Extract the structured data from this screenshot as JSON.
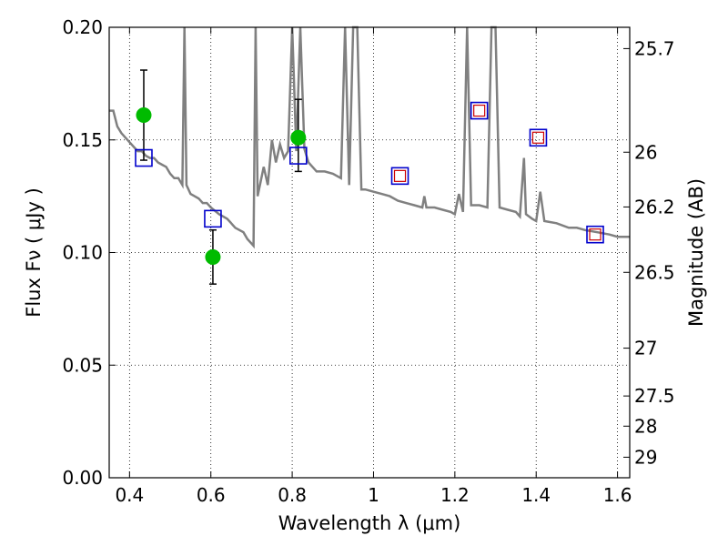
{
  "chart_data": {
    "type": "scatter",
    "title": "",
    "xlabel": "Wavelength  λ (μm)",
    "ylabel": "Flux  Fν  ( μJy )",
    "y2label": "Magnitude (AB)",
    "xlim": [
      0.35,
      1.63
    ],
    "ylim": [
      0.0,
      0.2
    ],
    "grid": true,
    "x_ticks": [
      {
        "value": 0.4,
        "label": "0.4"
      },
      {
        "value": 0.6,
        "label": "0.6"
      },
      {
        "value": 0.8,
        "label": "0.8"
      },
      {
        "value": 1.0,
        "label": "1"
      },
      {
        "value": 1.2,
        "label": "1.2"
      },
      {
        "value": 1.4,
        "label": "1.4"
      },
      {
        "value": 1.6,
        "label": "1.6"
      }
    ],
    "y_ticks": [
      {
        "value": 0.0,
        "label": "0.00"
      },
      {
        "value": 0.05,
        "label": "0.05"
      },
      {
        "value": 0.1,
        "label": "0.10"
      },
      {
        "value": 0.15,
        "label": "0.15"
      },
      {
        "value": 0.2,
        "label": "0.20"
      }
    ],
    "y2_ticks": [
      {
        "mag": 25.7,
        "label": "25.7"
      },
      {
        "mag": 26,
        "label": "26"
      },
      {
        "mag": 26.2,
        "label": "26.2"
      },
      {
        "mag": 26.5,
        "label": "26.5"
      },
      {
        "mag": 27,
        "label": "27"
      },
      {
        "mag": 27.5,
        "label": "27.5"
      },
      {
        "mag": 28,
        "label": "28"
      },
      {
        "mag": 29,
        "label": "29"
      }
    ],
    "colors": {
      "model": "#808080",
      "observed": "#00bb00",
      "synthetic": "#0000cc",
      "synthetic_inner": "#cc0000",
      "errorbar": "#000000"
    },
    "series": [
      {
        "kind": "line",
        "points": [
          [
            0.35,
            0.163
          ],
          [
            0.36,
            0.163
          ],
          [
            0.37,
            0.156
          ],
          [
            0.38,
            0.153
          ],
          [
            0.39,
            0.151
          ],
          [
            0.4,
            0.149
          ],
          [
            0.41,
            0.147
          ],
          [
            0.42,
            0.145
          ],
          [
            0.43,
            0.145
          ],
          [
            0.44,
            0.143
          ],
          [
            0.45,
            0.142
          ],
          [
            0.46,
            0.142
          ],
          [
            0.47,
            0.14
          ],
          [
            0.48,
            0.139
          ],
          [
            0.49,
            0.138
          ],
          [
            0.5,
            0.135
          ],
          [
            0.51,
            0.133
          ],
          [
            0.52,
            0.133
          ],
          [
            0.53,
            0.13
          ],
          [
            0.535,
            0.2
          ],
          [
            0.54,
            0.13
          ],
          [
            0.55,
            0.126
          ],
          [
            0.56,
            0.125
          ],
          [
            0.57,
            0.124
          ],
          [
            0.58,
            0.122
          ],
          [
            0.59,
            0.122
          ],
          [
            0.6,
            0.12
          ],
          [
            0.62,
            0.117
          ],
          [
            0.64,
            0.115
          ],
          [
            0.65,
            0.113
          ],
          [
            0.66,
            0.111
          ],
          [
            0.68,
            0.109
          ],
          [
            0.69,
            0.106
          ],
          [
            0.7,
            0.104
          ],
          [
            0.705,
            0.103
          ],
          [
            0.71,
            0.2
          ],
          [
            0.715,
            0.125
          ],
          [
            0.73,
            0.138
          ],
          [
            0.74,
            0.13
          ],
          [
            0.75,
            0.15
          ],
          [
            0.76,
            0.14
          ],
          [
            0.77,
            0.148
          ],
          [
            0.78,
            0.142
          ],
          [
            0.79,
            0.145
          ],
          [
            0.8,
            0.2
          ],
          [
            0.81,
            0.145
          ],
          [
            0.82,
            0.2
          ],
          [
            0.83,
            0.146
          ],
          [
            0.84,
            0.14
          ],
          [
            0.86,
            0.136
          ],
          [
            0.88,
            0.136
          ],
          [
            0.9,
            0.135
          ],
          [
            0.92,
            0.133
          ],
          [
            0.93,
            0.2
          ],
          [
            0.94,
            0.13
          ],
          [
            0.95,
            0.2
          ],
          [
            0.96,
            0.2
          ],
          [
            0.97,
            0.128
          ],
          [
            0.98,
            0.128
          ],
          [
            1.0,
            0.127
          ],
          [
            1.02,
            0.126
          ],
          [
            1.04,
            0.125
          ],
          [
            1.06,
            0.123
          ],
          [
            1.08,
            0.122
          ],
          [
            1.1,
            0.121
          ],
          [
            1.12,
            0.12
          ],
          [
            1.125,
            0.125
          ],
          [
            1.13,
            0.12
          ],
          [
            1.15,
            0.12
          ],
          [
            1.17,
            0.119
          ],
          [
            1.19,
            0.118
          ],
          [
            1.2,
            0.117
          ],
          [
            1.21,
            0.126
          ],
          [
            1.22,
            0.118
          ],
          [
            1.23,
            0.2
          ],
          [
            1.24,
            0.121
          ],
          [
            1.26,
            0.121
          ],
          [
            1.28,
            0.12
          ],
          [
            1.29,
            0.2
          ],
          [
            1.3,
            0.2
          ],
          [
            1.31,
            0.12
          ],
          [
            1.33,
            0.119
          ],
          [
            1.35,
            0.118
          ],
          [
            1.36,
            0.116
          ],
          [
            1.37,
            0.142
          ],
          [
            1.375,
            0.117
          ],
          [
            1.39,
            0.115
          ],
          [
            1.4,
            0.114
          ],
          [
            1.41,
            0.127
          ],
          [
            1.42,
            0.114
          ],
          [
            1.45,
            0.113
          ],
          [
            1.48,
            0.111
          ],
          [
            1.5,
            0.111
          ],
          [
            1.52,
            0.11
          ],
          [
            1.55,
            0.109
          ],
          [
            1.58,
            0.108
          ],
          [
            1.6,
            0.107
          ],
          [
            1.63,
            0.107
          ]
        ]
      },
      {
        "kind": "observed",
        "points": [
          {
            "x": 0.435,
            "y": 0.161,
            "lo": 0.141,
            "hi": 0.181
          },
          {
            "x": 0.605,
            "y": 0.098,
            "lo": 0.086,
            "hi": 0.11
          },
          {
            "x": 0.815,
            "y": 0.151,
            "lo": 0.136,
            "hi": 0.168
          }
        ]
      },
      {
        "kind": "synthetic",
        "points": [
          {
            "x": 0.435,
            "y": 0.142,
            "inner": false
          },
          {
            "x": 0.605,
            "y": 0.115,
            "inner": false
          },
          {
            "x": 0.815,
            "y": 0.143,
            "inner": false
          },
          {
            "x": 1.065,
            "y": 0.134,
            "inner": true
          },
          {
            "x": 1.26,
            "y": 0.163,
            "inner": true
          },
          {
            "x": 1.405,
            "y": 0.151,
            "inner": true
          },
          {
            "x": 1.545,
            "y": 0.108,
            "inner": true
          }
        ]
      }
    ]
  }
}
